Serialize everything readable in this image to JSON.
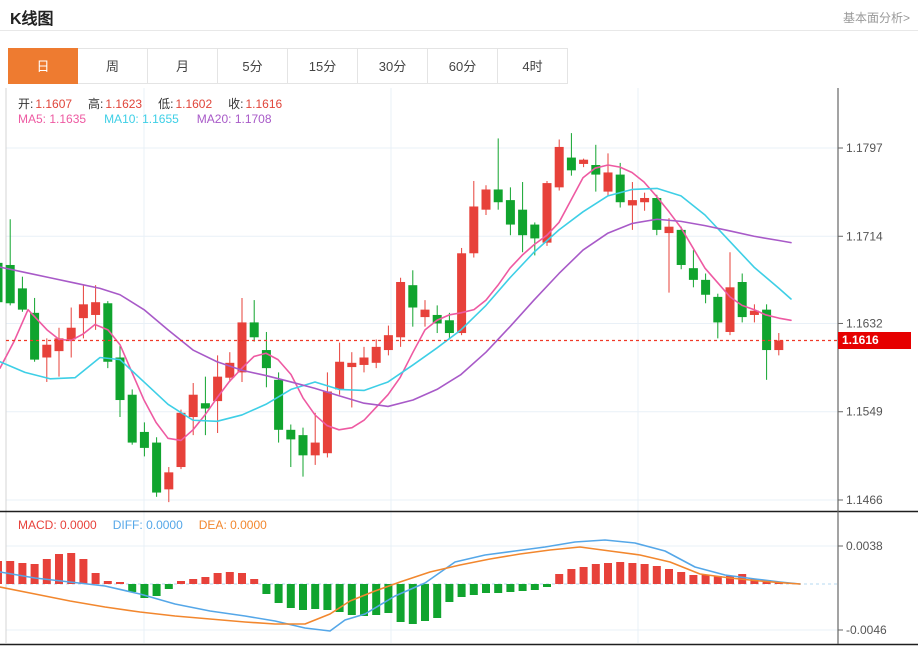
{
  "header": {
    "title": "K线图",
    "analysis_link": "基本面分析>"
  },
  "tabs": [
    {
      "label": "日",
      "name": "tab-day",
      "active": true
    },
    {
      "label": "周",
      "name": "tab-week",
      "active": false
    },
    {
      "label": "月",
      "name": "tab-month",
      "active": false
    },
    {
      "label": "5分",
      "name": "tab-5min",
      "active": false
    },
    {
      "label": "15分",
      "name": "tab-15min",
      "active": false
    },
    {
      "label": "30分",
      "name": "tab-30min",
      "active": false
    },
    {
      "label": "60分",
      "name": "tab-60min",
      "active": false
    },
    {
      "label": "4时",
      "name": "tab-4hour",
      "active": false
    }
  ],
  "quote": {
    "open_label": "开:",
    "open_value": "1.1607",
    "high_label": "高:",
    "high_value": "1.1623",
    "low_label": "低:",
    "low_value": "1.1602",
    "close_label": "收:",
    "close_value": "1.1616"
  },
  "ma": {
    "ma5_label": "MA5:",
    "ma5_value": "1.1635",
    "ma10_label": "MA10:",
    "ma10_value": "1.1655",
    "ma20_label": "MA20:",
    "ma20_value": "1.1708"
  },
  "macd_info": {
    "macd_label": "MACD:",
    "macd_value": "0.0000",
    "diff_label": "DIFF:",
    "diff_value": "0.0000",
    "dea_label": "DEA:",
    "dea_value": "0.0000"
  },
  "colors": {
    "up": "#e7413a",
    "down": "#10a42e",
    "ma5": "#ee5aa2",
    "ma10": "#3ecfe6",
    "ma20": "#a85ac8",
    "diff": "#55a7e8",
    "dea": "#f2872e",
    "grid": "#e9f0f7",
    "zero_line": "#b5d8f0",
    "last_price_line": "#f03927",
    "badge": "#e60000",
    "axis": "#666666",
    "tick_text": "#555555",
    "quote_value": "#e0453a",
    "tab_active": "#ee7b30",
    "divider": "#1f1f1f"
  },
  "chart_data": {
    "type": "candlestick",
    "title": "K线图",
    "grid": true,
    "legend_position": "top-left",
    "price_axis": {
      "ylim": [
        1.1466,
        1.1797
      ],
      "ticks": [
        {
          "label": "1.1797",
          "value": 1.1797
        },
        {
          "label": "1.1714",
          "value": 1.1714
        },
        {
          "label": "1.1632",
          "value": 1.1632
        },
        {
          "label": "1.1549",
          "value": 1.1549
        },
        {
          "label": "1.1466",
          "value": 1.1466
        }
      ],
      "last_price": {
        "label": "1.1616",
        "value": 1.1616
      }
    },
    "candles": [
      [
        1.1689,
        1.169,
        1.165,
        1.1652
      ],
      [
        1.1687,
        1.173,
        1.1649,
        1.1651
      ],
      [
        1.1665,
        1.1676,
        1.1643,
        1.1645
      ],
      [
        1.1642,
        1.1656,
        1.1596,
        1.1598
      ],
      [
        1.16,
        1.1618,
        1.1577,
        1.1612
      ],
      [
        1.1606,
        1.1628,
        1.1582,
        1.1618
      ],
      [
        1.1617,
        1.1647,
        1.16,
        1.1628
      ],
      [
        1.1637,
        1.1668,
        1.1618,
        1.165
      ],
      [
        1.164,
        1.1668,
        1.1626,
        1.1652
      ],
      [
        1.1651,
        1.1653,
        1.159,
        1.1596
      ],
      [
        1.16,
        1.1612,
        1.1544,
        1.156
      ],
      [
        1.1565,
        1.157,
        1.1518,
        1.152
      ],
      [
        1.153,
        1.1539,
        1.1507,
        1.1515
      ],
      [
        1.152,
        1.1525,
        1.1469,
        1.1473
      ],
      [
        1.1476,
        1.1497,
        1.1464,
        1.1492
      ],
      [
        1.1497,
        1.1551,
        1.1495,
        1.1548
      ],
      [
        1.1544,
        1.1576,
        1.1527,
        1.1565
      ],
      [
        1.1557,
        1.1582,
        1.1527,
        1.1552
      ],
      [
        1.1559,
        1.1602,
        1.1529,
        1.1582
      ],
      [
        1.1581,
        1.1605,
        1.1577,
        1.1595
      ],
      [
        1.1586,
        1.1656,
        1.1577,
        1.1633
      ],
      [
        1.1633,
        1.1654,
        1.1615,
        1.1619
      ],
      [
        1.1607,
        1.1624,
        1.1572,
        1.159
      ],
      [
        1.1579,
        1.1586,
        1.152,
        1.1532
      ],
      [
        1.1532,
        1.1537,
        1.1497,
        1.1523
      ],
      [
        1.1527,
        1.1534,
        1.1488,
        1.1508
      ],
      [
        1.1508,
        1.1548,
        1.1499,
        1.152
      ],
      [
        1.151,
        1.1586,
        1.1506,
        1.1568
      ],
      [
        1.157,
        1.1614,
        1.1565,
        1.1596
      ],
      [
        1.1591,
        1.1605,
        1.1553,
        1.1595
      ],
      [
        1.1593,
        1.161,
        1.1586,
        1.16
      ],
      [
        1.1595,
        1.1617,
        1.159,
        1.161
      ],
      [
        1.1607,
        1.163,
        1.1602,
        1.1621
      ],
      [
        1.1619,
        1.1675,
        1.161,
        1.1671
      ],
      [
        1.1668,
        1.1682,
        1.1629,
        1.1647
      ],
      [
        1.1638,
        1.1654,
        1.1629,
        1.1645
      ],
      [
        1.164,
        1.1649,
        1.1623,
        1.1632
      ],
      [
        1.1635,
        1.1642,
        1.1617,
        1.1623
      ],
      [
        1.1623,
        1.1703,
        1.1621,
        1.1698
      ],
      [
        1.1698,
        1.1766,
        1.1694,
        1.1742
      ],
      [
        1.1739,
        1.1762,
        1.1734,
        1.1758
      ],
      [
        1.1758,
        1.1806,
        1.1739,
        1.1746
      ],
      [
        1.1748,
        1.176,
        1.1715,
        1.1725
      ],
      [
        1.1739,
        1.1765,
        1.1699,
        1.1715
      ],
      [
        1.1725,
        1.1727,
        1.1696,
        1.1712
      ],
      [
        1.1708,
        1.1766,
        1.1705,
        1.1764
      ],
      [
        1.176,
        1.1805,
        1.1757,
        1.1798
      ],
      [
        1.1788,
        1.1811,
        1.1771,
        1.1776
      ],
      [
        1.1782,
        1.1787,
        1.1779,
        1.1786
      ],
      [
        1.1781,
        1.18,
        1.1756,
        1.1772
      ],
      [
        1.1756,
        1.1792,
        1.1752,
        1.1774
      ],
      [
        1.1772,
        1.1783,
        1.1741,
        1.1746
      ],
      [
        1.1743,
        1.1765,
        1.172,
        1.1748
      ],
      [
        1.1746,
        1.1755,
        1.1738,
        1.175
      ],
      [
        1.175,
        1.1753,
        1.1715,
        1.172
      ],
      [
        1.1717,
        1.1731,
        1.1661,
        1.1723
      ],
      [
        1.172,
        1.1723,
        1.1683,
        1.1687
      ],
      [
        1.1684,
        1.1701,
        1.1666,
        1.1673
      ],
      [
        1.1673,
        1.1679,
        1.1651,
        1.1659
      ],
      [
        1.1657,
        1.166,
        1.1618,
        1.1633
      ],
      [
        1.1624,
        1.1699,
        1.1621,
        1.1666
      ],
      [
        1.1671,
        1.1679,
        1.1633,
        1.1638
      ],
      [
        1.164,
        1.165,
        1.1633,
        1.1644
      ],
      [
        1.1645,
        1.165,
        1.1579,
        1.1607
      ],
      [
        1.1607,
        1.1623,
        1.1602,
        1.1616
      ]
    ],
    "ma5": [
      [
        0,
        1.159
      ],
      [
        14,
        1.1615
      ],
      [
        28,
        1.1645
      ],
      [
        47,
        1.1626
      ],
      [
        59,
        1.1617
      ],
      [
        71,
        1.1616
      ],
      [
        83,
        1.1622
      ],
      [
        95,
        1.1631
      ],
      [
        108,
        1.1626
      ],
      [
        120,
        1.1612
      ],
      [
        132,
        1.1586
      ],
      [
        144,
        1.156
      ],
      [
        156,
        1.1539
      ],
      [
        168,
        1.1524
      ],
      [
        181,
        1.1522
      ],
      [
        193,
        1.1532
      ],
      [
        205,
        1.1546
      ],
      [
        217,
        1.1562
      ],
      [
        229,
        1.1577
      ],
      [
        242,
        1.159
      ],
      [
        254,
        1.1601
      ],
      [
        266,
        1.1604
      ],
      [
        278,
        1.1598
      ],
      [
        291,
        1.1584
      ],
      [
        303,
        1.1562
      ],
      [
        315,
        1.1546
      ],
      [
        327,
        1.1536
      ],
      [
        339,
        1.1532
      ],
      [
        352,
        1.1534
      ],
      [
        364,
        1.1541
      ],
      [
        376,
        1.1553
      ],
      [
        388,
        1.1565
      ],
      [
        400,
        1.1581
      ],
      [
        413,
        1.1605
      ],
      [
        425,
        1.1626
      ],
      [
        437,
        1.1635
      ],
      [
        449,
        1.164
      ],
      [
        461,
        1.1642
      ],
      [
        474,
        1.1645
      ],
      [
        486,
        1.1654
      ],
      [
        498,
        1.1668
      ],
      [
        510,
        1.1684
      ],
      [
        522,
        1.1696
      ],
      [
        534,
        1.1706
      ],
      [
        547,
        1.1715
      ],
      [
        559,
        1.1727
      ],
      [
        571,
        1.1748
      ],
      [
        583,
        1.1769
      ],
      [
        595,
        1.1778
      ],
      [
        608,
        1.1781
      ],
      [
        620,
        1.1779
      ],
      [
        632,
        1.1774
      ],
      [
        644,
        1.1765
      ],
      [
        657,
        1.1751
      ],
      [
        669,
        1.1737
      ],
      [
        681,
        1.1722
      ],
      [
        693,
        1.1703
      ],
      [
        705,
        1.1684
      ],
      [
        718,
        1.167
      ],
      [
        730,
        1.1657
      ],
      [
        742,
        1.1649
      ],
      [
        754,
        1.1645
      ],
      [
        766,
        1.164
      ],
      [
        779,
        1.1637
      ],
      [
        791,
        1.1635
      ]
    ],
    "ma10": [
      [
        0,
        1.1596
      ],
      [
        25,
        1.1586
      ],
      [
        50,
        1.158
      ],
      [
        75,
        1.1581
      ],
      [
        100,
        1.16
      ],
      [
        120,
        1.1598
      ],
      [
        144,
        1.1577
      ],
      [
        168,
        1.1556
      ],
      [
        193,
        1.1541
      ],
      [
        217,
        1.154
      ],
      [
        242,
        1.1546
      ],
      [
        266,
        1.1556
      ],
      [
        291,
        1.157
      ],
      [
        315,
        1.1577
      ],
      [
        339,
        1.157
      ],
      [
        364,
        1.1569
      ],
      [
        388,
        1.1577
      ],
      [
        413,
        1.1593
      ],
      [
        437,
        1.1609
      ],
      [
        461,
        1.1626
      ],
      [
        486,
        1.1649
      ],
      [
        510,
        1.1675
      ],
      [
        534,
        1.1699
      ],
      [
        559,
        1.172
      ],
      [
        583,
        1.1737
      ],
      [
        608,
        1.1752
      ],
      [
        632,
        1.1758
      ],
      [
        657,
        1.1759
      ],
      [
        681,
        1.1752
      ],
      [
        705,
        1.1734
      ],
      [
        730,
        1.1709
      ],
      [
        754,
        1.1685
      ],
      [
        779,
        1.1665
      ],
      [
        791,
        1.1655
      ]
    ],
    "ma20": [
      [
        0,
        1.1685
      ],
      [
        25,
        1.168
      ],
      [
        50,
        1.1675
      ],
      [
        75,
        1.167
      ],
      [
        100,
        1.1665
      ],
      [
        120,
        1.1659
      ],
      [
        144,
        1.1645
      ],
      [
        168,
        1.1626
      ],
      [
        193,
        1.1607
      ],
      [
        217,
        1.1596
      ],
      [
        242,
        1.1588
      ],
      [
        266,
        1.1583
      ],
      [
        291,
        1.1577
      ],
      [
        315,
        1.1571
      ],
      [
        339,
        1.1564
      ],
      [
        364,
        1.1557
      ],
      [
        388,
        1.1554
      ],
      [
        413,
        1.156
      ],
      [
        437,
        1.157
      ],
      [
        461,
        1.1584
      ],
      [
        486,
        1.1605
      ],
      [
        510,
        1.1629
      ],
      [
        534,
        1.1654
      ],
      [
        559,
        1.1679
      ],
      [
        583,
        1.1701
      ],
      [
        608,
        1.1717
      ],
      [
        632,
        1.1726
      ],
      [
        657,
        1.173
      ],
      [
        681,
        1.1728
      ],
      [
        705,
        1.1724
      ],
      [
        730,
        1.1719
      ],
      [
        754,
        1.1714
      ],
      [
        779,
        1.171
      ],
      [
        791,
        1.1708
      ]
    ],
    "macd": {
      "ticks": [
        {
          "label": "0.0038",
          "value": 0.0038
        },
        {
          "label": "-0.0046",
          "value": -0.0046
        }
      ],
      "histogram": [
        0.0023,
        0.0023,
        0.0021,
        0.002,
        0.0025,
        0.003,
        0.0031,
        0.0025,
        0.0011,
        0.0003,
        0.0002,
        -0.0008,
        -0.0014,
        -0.0012,
        -0.0005,
        0.0003,
        0.0005,
        0.0007,
        0.0011,
        0.0012,
        0.0011,
        0.0005,
        -0.001,
        -0.0019,
        -0.0024,
        -0.0026,
        -0.0025,
        -0.0026,
        -0.0028,
        -0.0031,
        -0.0032,
        -0.0031,
        -0.0029,
        -0.0038,
        -0.004,
        -0.0037,
        -0.0034,
        -0.0018,
        -0.0013,
        -0.0011,
        -0.0009,
        -0.0009,
        -0.0008,
        -0.0007,
        -0.0006,
        -0.0003,
        0.001,
        0.0015,
        0.0017,
        0.002,
        0.0021,
        0.0022,
        0.0021,
        0.002,
        0.0018,
        0.0015,
        0.0012,
        0.0009,
        0.0009,
        0.0008,
        0.0008,
        0.001,
        0.0005,
        0.0004,
        0.0002,
        0.0001
      ],
      "diff": [
        [
          0,
          0.0012
        ],
        [
          35,
          0.0006
        ],
        [
          70,
          0.0002
        ],
        [
          105,
          -0.0002
        ],
        [
          140,
          -0.001
        ],
        [
          175,
          -0.002
        ],
        [
          210,
          -0.0027
        ],
        [
          245,
          -0.0032
        ],
        [
          275,
          -0.0037
        ],
        [
          305,
          -0.0044
        ],
        [
          330,
          -0.0047
        ],
        [
          345,
          -0.0036
        ],
        [
          365,
          -0.003
        ],
        [
          395,
          -0.0012
        ],
        [
          425,
          0.0001
        ],
        [
          455,
          0.0022
        ],
        [
          485,
          0.0029
        ],
        [
          515,
          0.0033
        ],
        [
          545,
          0.0037
        ],
        [
          575,
          0.0042
        ],
        [
          605,
          0.0044
        ],
        [
          635,
          0.0041
        ],
        [
          665,
          0.0033
        ],
        [
          695,
          0.0017
        ],
        [
          725,
          0.0009
        ],
        [
          755,
          0.0005
        ],
        [
          780,
          0.0002
        ],
        [
          800,
          0.0
        ]
      ],
      "dea": [
        [
          0,
          -0.0003
        ],
        [
          35,
          -0.001
        ],
        [
          70,
          -0.0017
        ],
        [
          105,
          -0.0023
        ],
        [
          140,
          -0.0028
        ],
        [
          175,
          -0.0032
        ],
        [
          210,
          -0.0035
        ],
        [
          245,
          -0.0038
        ],
        [
          275,
          -0.004
        ],
        [
          305,
          -0.004
        ],
        [
          330,
          -0.003
        ],
        [
          350,
          -0.0017
        ],
        [
          375,
          -0.0007
        ],
        [
          400,
          0.0002
        ],
        [
          430,
          0.0012
        ],
        [
          460,
          0.0019
        ],
        [
          490,
          0.0025
        ],
        [
          520,
          0.003
        ],
        [
          550,
          0.0034
        ],
        [
          580,
          0.0037
        ],
        [
          610,
          0.0033
        ],
        [
          640,
          0.0029
        ],
        [
          670,
          0.0022
        ],
        [
          700,
          0.001
        ],
        [
          730,
          0.0006
        ],
        [
          760,
          0.0003
        ],
        [
          785,
          0.0001
        ],
        [
          800,
          0.0
        ]
      ]
    }
  }
}
